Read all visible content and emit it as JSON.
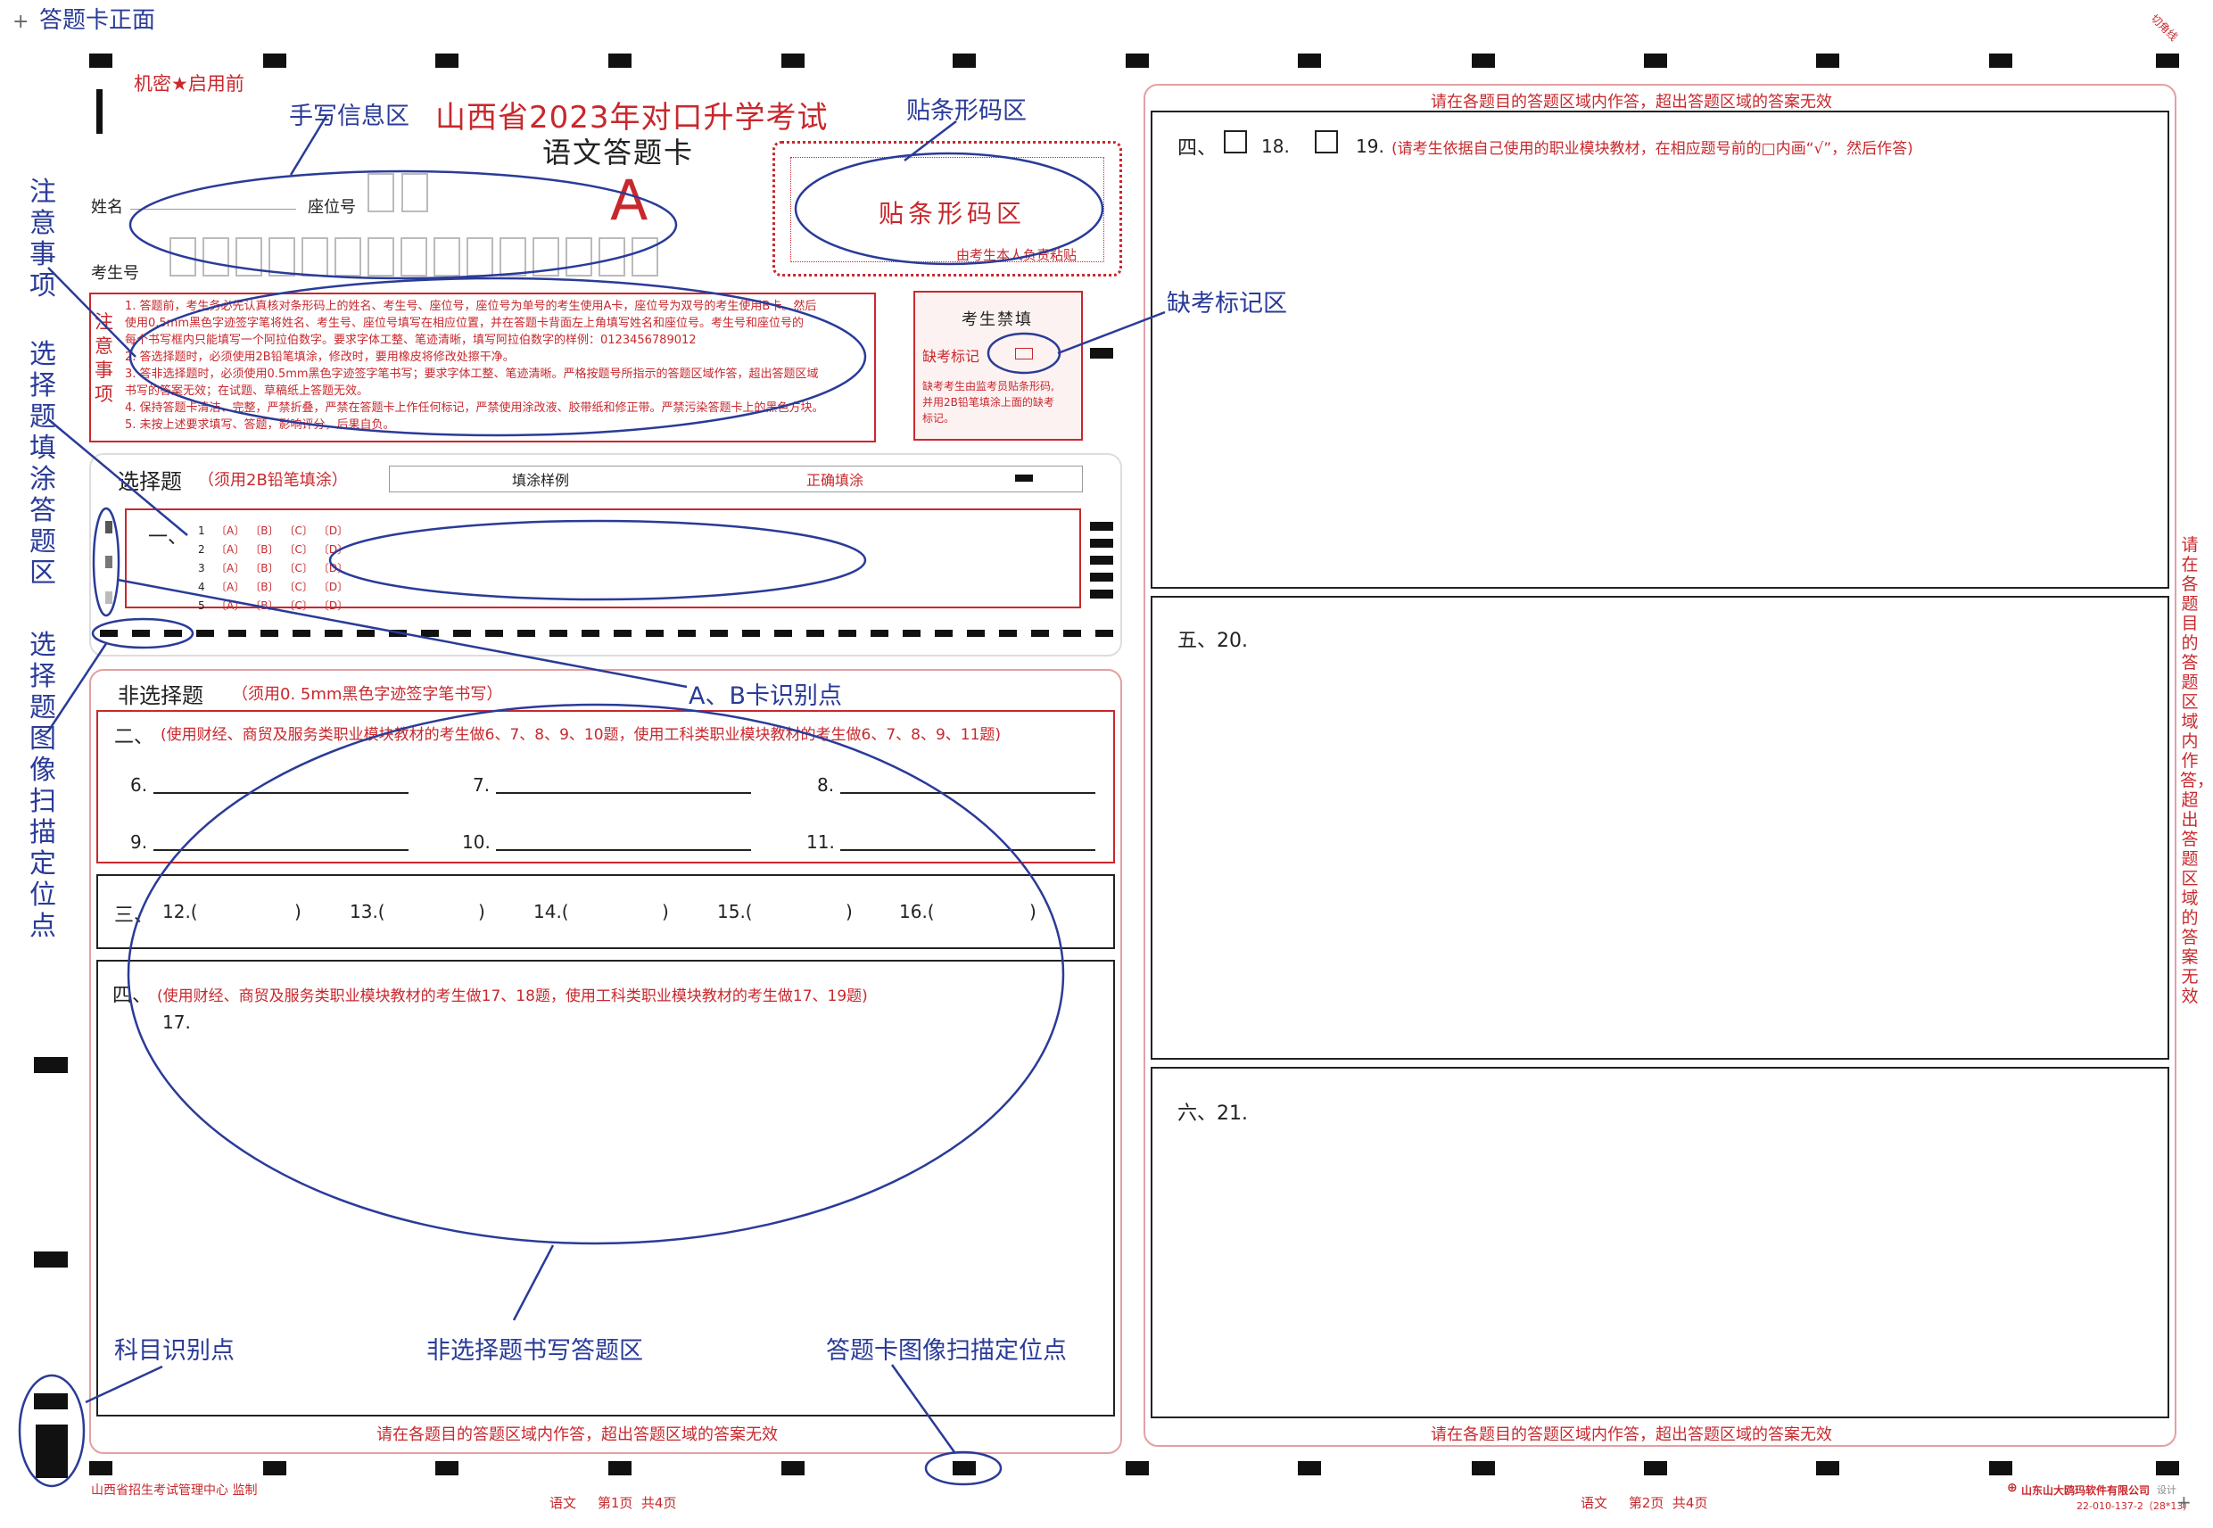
{
  "corner": {
    "front_label": "答题卡正面",
    "cut_label": "切角线"
  },
  "header": {
    "secret": "机密★启用前",
    "exam_title": "山西省2023年对口升学考试",
    "card_title": "语文答题卡",
    "card_type": "A",
    "name_label": "姓名",
    "seat_label": "座位号",
    "exam_no_label": "考生号"
  },
  "barcode": {
    "label": "贴条形码区",
    "note": "由考生本人负责粘贴"
  },
  "absence": {
    "title": "考生禁填",
    "mark_label": "缺考标记",
    "desc": [
      "缺考考生由监考员贴条形码,",
      "并用2B铅笔填涂上面的缺考",
      "标记。"
    ]
  },
  "notice": {
    "title": "注意事项",
    "lines": [
      "1. 答题前，考生务必先认真核对条形码上的姓名、考生号、座位号，座位号为单号的考生使用A卡，座位号为双号的考生使用B卡。然后",
      "   使用0.5mm黑色字迹签字笔将姓名、考生号、座位号填写在相应位置，并在答题卡背面左上角填写姓名和座位号。考生号和座位号的",
      "   每个书写框内只能填写一个阿拉伯数字。要求字体工整、笔迹清晰，填写阿拉伯数字的样例：0123456789012",
      "2. 答选择题时，必须使用2B铅笔填涂，修改时，要用橡皮将修改处擦干净。",
      "3. 答非选择题时，必须使用0.5mm黑色字迹签字笔书写；要求字体工整、笔迹清晰。严格按题号所指示的答题区域作答，超出答题区域",
      "   书写的答案无效；在试题、草稿纸上答题无效。",
      "4. 保持答题卡清洁、完整，严禁折叠，严禁在答题卡上作任何标记，严禁使用涂改液、胶带纸和修正带。严禁污染答题卡上的黑色方块。",
      "5. 未按上述要求填写、答题，影响评分，后果自负。"
    ]
  },
  "choice": {
    "title": "选择题",
    "subtitle": "（须用2B铅笔填涂）",
    "sample_label": "填涂样例",
    "correct_label": "正确填涂",
    "section": "一、",
    "questions": [
      "1",
      "2",
      "3",
      "4",
      "5"
    ],
    "options": [
      "〔A〕",
      "〔B〕",
      "〔C〕",
      "〔D〕"
    ]
  },
  "nonchoice": {
    "title": "非选择题",
    "subtitle": "（须用0. 5mm黑色字迹签字笔书写）",
    "sec2_label": "二、",
    "sec2_note": "(使用财经、商贸及服务类职业模块教材的考生做6、7、8、9、10题，使用工科类职业模块教材的考生做6、7、8、9、11题)",
    "sec2_items": [
      "6.",
      "7.",
      "8.",
      "9.",
      "10.",
      "11."
    ],
    "sec3_label": "三、",
    "sec3_items": [
      "12.(",
      "13.(",
      "14.(",
      "15.(",
      "16.("
    ],
    "close_paren": ")",
    "sec4_label": "四、",
    "sec4_note": "(使用财经、商贸及服务类职业模块教材的考生做17、18题，使用工科类职业模块教材的考生做17、19题)",
    "sec4_item": "17."
  },
  "right": {
    "top_warning": "请在各题目的答题区域内作答，超出答题区域的答案无效",
    "q4_label": "四、",
    "q18": "18.",
    "q19": "19.",
    "q4_note": "(请考生依据自己使用的职业模块教材，在相应题号前的□内画“√”，然后作答)",
    "q5": "五、20.",
    "q6": "六、21.",
    "side_warning": "请在各题目的答题区域内作答，超出答题区域的答案无效",
    "bottom_warning": "请在各题目的答题区域内作答，超出答题区域的答案无效"
  },
  "left_bottom_warning": "请在各题目的答题区域内作答，超出答题区域的答案无效",
  "footer": {
    "org": "山西省招生考试管理中心  监制",
    "page1": "语文     第1页  共4页",
    "page2": "语文     第2页  共4页",
    "company": "山东山大鸥玛软件有限公司",
    "design": "设计",
    "code": "22-010-137-2（28*13）"
  },
  "callouts": {
    "handwriting": "手写信息区",
    "barcode": "贴条形码区",
    "notice": "注意事项",
    "fill": "选择题填涂答题区",
    "locate": "选择题图像扫描定位点",
    "absent": "缺考标记区",
    "ab": "A、B卡识别点",
    "subject": "科目识别点",
    "write": "非选择题书写答题区",
    "scan": "答题卡图像扫描定位点"
  }
}
